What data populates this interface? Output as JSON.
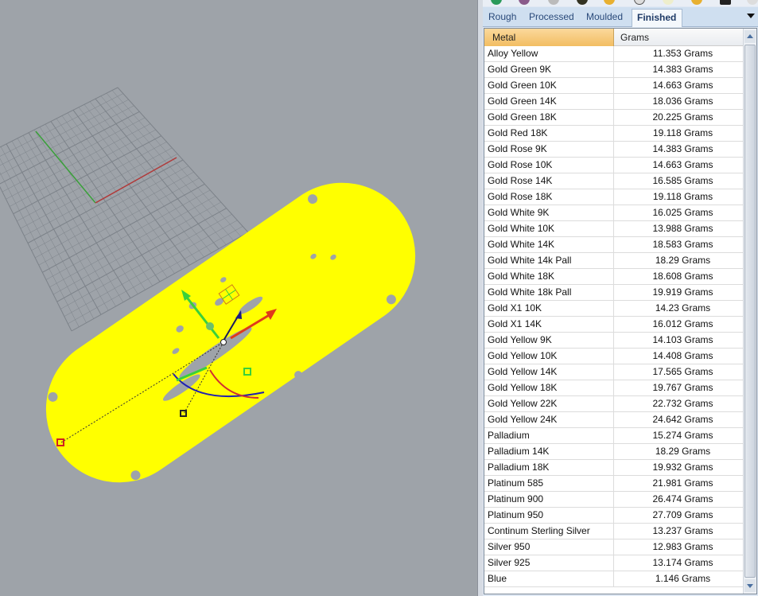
{
  "panel": {
    "tabs": [
      {
        "label": "Rough",
        "active": false
      },
      {
        "label": "Processed",
        "active": false
      },
      {
        "label": "Moulded",
        "active": false
      },
      {
        "label": "Finished",
        "active": true
      }
    ],
    "columns": [
      "Metal",
      "Grams"
    ],
    "rows": [
      [
        "Alloy Yellow",
        "11.353 Grams"
      ],
      [
        "Gold Green 9K",
        "14.383 Grams"
      ],
      [
        "Gold Green 10K",
        "14.663 Grams"
      ],
      [
        "Gold Green 14K",
        "18.036 Grams"
      ],
      [
        "Gold Green 18K",
        "20.225 Grams"
      ],
      [
        "Gold Red 18K",
        "19.118 Grams"
      ],
      [
        "Gold Rose 9K",
        "14.383 Grams"
      ],
      [
        "Gold Rose 10K",
        "14.663 Grams"
      ],
      [
        "Gold Rose 14K",
        "16.585 Grams"
      ],
      [
        "Gold Rose 18K",
        "19.118 Grams"
      ],
      [
        "Gold White 9K",
        "16.025 Grams"
      ],
      [
        "Gold White 10K",
        "13.988 Grams"
      ],
      [
        "Gold White 14K",
        "18.583 Grams"
      ],
      [
        "Gold White 14k Pall",
        "18.29 Grams"
      ],
      [
        "Gold White 18K",
        "18.608 Grams"
      ],
      [
        "Gold White 18k Pall",
        "19.919 Grams"
      ],
      [
        "Gold X1 10K",
        "14.23 Grams"
      ],
      [
        "Gold X1 14K",
        "16.012 Grams"
      ],
      [
        "Gold Yellow 9K",
        "14.103 Grams"
      ],
      [
        "Gold Yellow 10K",
        "14.408 Grams"
      ],
      [
        "Gold Yellow 14K",
        "17.565 Grams"
      ],
      [
        "Gold Yellow 18K",
        "19.767 Grams"
      ],
      [
        "Gold Yellow 22K",
        "22.732 Grams"
      ],
      [
        "Gold Yellow 24K",
        "24.642 Grams"
      ],
      [
        "Palladium",
        "15.274 Grams"
      ],
      [
        "Palladium 14K",
        "18.29 Grams"
      ],
      [
        "Palladium 18K",
        "19.932 Grams"
      ],
      [
        "Platinum 585",
        "21.981 Grams"
      ],
      [
        "Platinum 900",
        "26.474 Grams"
      ],
      [
        "Platinum 950",
        "27.709 Grams"
      ],
      [
        "Continum Sterling Silver",
        "13.237 Grams"
      ],
      [
        "Silver 950",
        "12.983 Grams"
      ],
      [
        "Silver 925",
        "13.174 Grams"
      ],
      [
        "Blue",
        "1.146 Grams"
      ]
    ]
  },
  "colors": {
    "object": "#ffff00",
    "viewport": "#9ea3a9",
    "x_axis": "#b03030",
    "y_axis": "#2e9a2e",
    "header": "#f2bd62"
  }
}
